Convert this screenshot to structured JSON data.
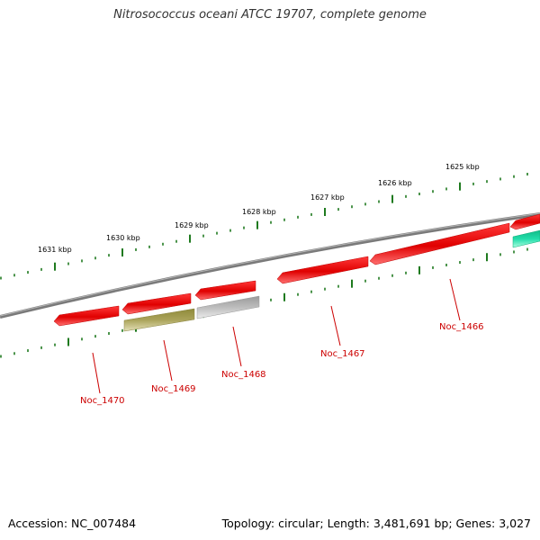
{
  "title": "Nitrosococcus oceani ATCC 19707, complete genome",
  "accession_label": "Accession: NC_007484",
  "summary_label": "Topology: circular; Length: 3,481,691 bp; Genes: 3,027",
  "colors": {
    "backbone": "#7a7a7a",
    "tick": "#1f7a1f",
    "gene_red": "#ee0000",
    "gene_olive": "#aaa060",
    "gene_gray": "#bdbdbd",
    "gene_green": "#22ddaa",
    "label": "#cc0000"
  },
  "scale_ticks": [
    "1625 kbp",
    "1626 kbp",
    "1627 kbp",
    "1628 kbp",
    "1629 kbp",
    "1630 kbp",
    "1631 kbp"
  ],
  "genes": [
    {
      "name": "Noc_1466"
    },
    {
      "name": "Noc_1467"
    },
    {
      "name": "Noc_1468"
    },
    {
      "name": "Noc_1469"
    },
    {
      "name": "Noc_1470"
    }
  ]
}
